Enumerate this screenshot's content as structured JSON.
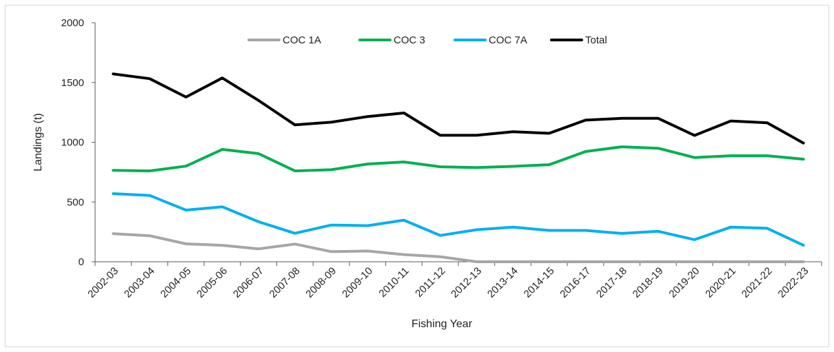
{
  "chart_data": {
    "type": "line",
    "title": "",
    "xlabel": "Fishing Year",
    "ylabel": "Landings (t)",
    "ylim": [
      0,
      2000
    ],
    "yticks": [
      0,
      500,
      1000,
      1500,
      2000
    ],
    "legend_position": "top",
    "grid": false,
    "categories": [
      "2002-03",
      "2003-04",
      "2004-05",
      "2005-06",
      "2006-07",
      "2007-08",
      "2008-09",
      "2009-10",
      "2010-11",
      "2011-12",
      "2012-13",
      "2013-14",
      "2014-15",
      "2016-17",
      "2017-18",
      "2018-19",
      "2019-20",
      "2020-21",
      "2021-22",
      "2022-23"
    ],
    "series": [
      {
        "name": "COC 1A",
        "color": "#a6a6a6",
        "values": [
          235,
          218,
          150,
          138,
          108,
          148,
          85,
          90,
          60,
          42,
          0,
          0,
          0,
          0,
          0,
          0,
          0,
          0,
          0,
          0
        ]
      },
      {
        "name": "COC 3",
        "color": "#00b050",
        "values": [
          765,
          760,
          800,
          940,
          905,
          760,
          770,
          818,
          835,
          795,
          788,
          798,
          812,
          922,
          962,
          950,
          872,
          887,
          887,
          858
        ]
      },
      {
        "name": "COC 7A",
        "color": "#00b0f0",
        "values": [
          570,
          555,
          432,
          460,
          335,
          238,
          307,
          302,
          348,
          220,
          268,
          290,
          262,
          262,
          237,
          255,
          185,
          290,
          280,
          138
        ]
      },
      {
        "name": "Total",
        "color": "#000000",
        "values": [
          1572,
          1532,
          1378,
          1538,
          1350,
          1145,
          1168,
          1215,
          1245,
          1058,
          1058,
          1088,
          1075,
          1185,
          1200,
          1200,
          1057,
          1178,
          1163,
          993
        ]
      }
    ]
  }
}
